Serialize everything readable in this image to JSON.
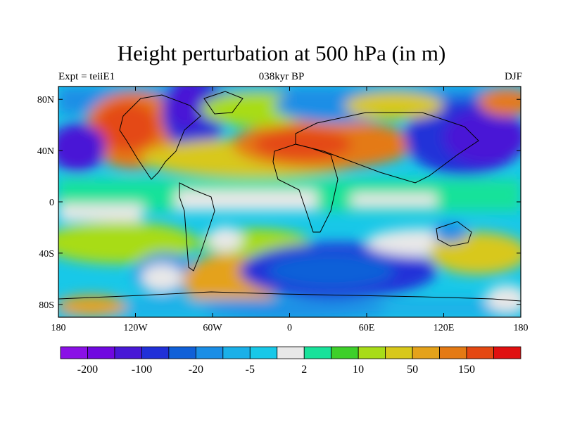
{
  "title": "Height perturbation at 500 hPa (in m)",
  "subtitle_left": "Expt = teiiE1",
  "subtitle_center": "038kyr BP",
  "subtitle_right": "DJF",
  "map": {
    "lon_range": [
      -180,
      180
    ],
    "lat_range": [
      -90,
      90
    ],
    "x_ticks": [
      {
        "value": -180,
        "label": "180"
      },
      {
        "value": -120,
        "label": "120W"
      },
      {
        "value": -60,
        "label": "60W"
      },
      {
        "value": 0,
        "label": "0"
      },
      {
        "value": 60,
        "label": "60E"
      },
      {
        "value": 120,
        "label": "120E"
      },
      {
        "value": 180,
        "label": "180"
      }
    ],
    "y_ticks": [
      {
        "value": 80,
        "label": "80N"
      },
      {
        "value": 40,
        "label": "40N"
      },
      {
        "value": 0,
        "label": "0"
      },
      {
        "value": -40,
        "label": "40S"
      },
      {
        "value": -80,
        "label": "80S"
      }
    ]
  },
  "colorbar": {
    "colors": [
      "#8a10e6",
      "#7008e0",
      "#4818d6",
      "#2030d8",
      "#1060d8",
      "#1a8ee6",
      "#1ab0e8",
      "#18c8e8",
      "#e8e8e8",
      "#18e29a",
      "#3ed02a",
      "#a8dc18",
      "#d8c81a",
      "#e4a21a",
      "#e47a14",
      "#e44812",
      "#e01010"
    ],
    "labels": [
      {
        "boundary": 1,
        "label": "-200"
      },
      {
        "boundary": 3,
        "label": "-100"
      },
      {
        "boundary": 5,
        "label": "-20"
      },
      {
        "boundary": 7,
        "label": "-5"
      },
      {
        "boundary": 9,
        "label": "2"
      },
      {
        "boundary": 11,
        "label": "10"
      },
      {
        "boundary": 13,
        "label": "50"
      },
      {
        "boundary": 15,
        "label": "150"
      }
    ]
  }
}
